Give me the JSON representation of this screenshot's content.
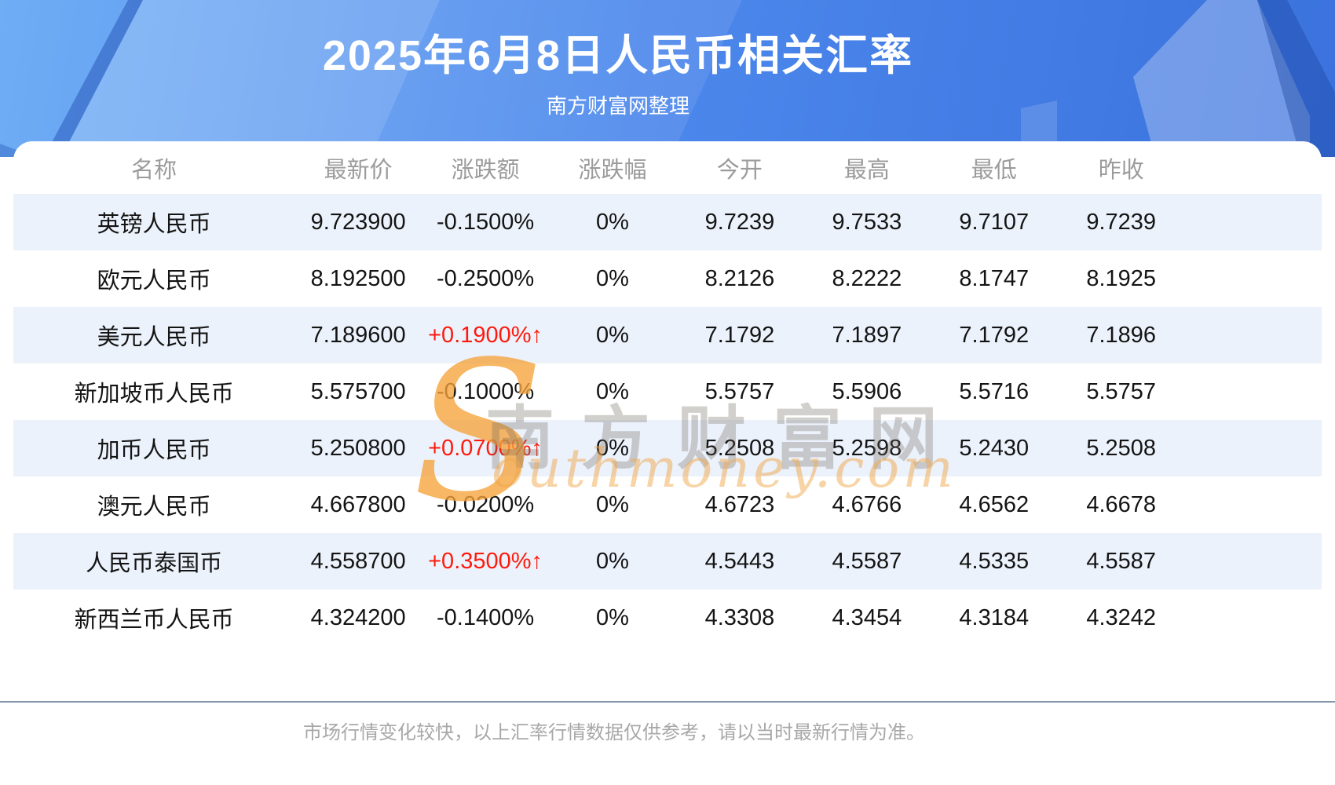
{
  "header": {
    "title": "2025年6月8日人民币相关汇率",
    "subtitle": "南方财富网整理"
  },
  "table": {
    "columns": [
      "名称",
      "最新价",
      "涨跌额",
      "涨跌幅",
      "今开",
      "最高",
      "最低",
      "昨收"
    ],
    "rows": [
      {
        "name": "英镑人民币",
        "latest": "9.723900",
        "change": "-0.1500%",
        "dir": "down",
        "pct": "0%",
        "open": "9.7239",
        "high": "9.7533",
        "low": "9.7107",
        "prev": "9.7239"
      },
      {
        "name": "欧元人民币",
        "latest": "8.192500",
        "change": "-0.2500%",
        "dir": "down",
        "pct": "0%",
        "open": "8.2126",
        "high": "8.2222",
        "low": "8.1747",
        "prev": "8.1925"
      },
      {
        "name": "美元人民币",
        "latest": "7.189600",
        "change": "+0.1900%↑",
        "dir": "up",
        "pct": "0%",
        "open": "7.1792",
        "high": "7.1897",
        "low": "7.1792",
        "prev": "7.1896"
      },
      {
        "name": "新加坡币人民币",
        "latest": "5.575700",
        "change": "-0.1000%",
        "dir": "down",
        "pct": "0%",
        "open": "5.5757",
        "high": "5.5906",
        "low": "5.5716",
        "prev": "5.5757"
      },
      {
        "name": "加币人民币",
        "latest": "5.250800",
        "change": "+0.0700%↑",
        "dir": "up",
        "pct": "0%",
        "open": "5.2508",
        "high": "5.2598",
        "low": "5.2430",
        "prev": "5.2508"
      },
      {
        "name": "澳元人民币",
        "latest": "4.667800",
        "change": "-0.0200%",
        "dir": "down",
        "pct": "0%",
        "open": "4.6723",
        "high": "4.6766",
        "low": "4.6562",
        "prev": "4.6678"
      },
      {
        "name": "人民币泰国币",
        "latest": "4.558700",
        "change": "+0.3500%↑",
        "dir": "up",
        "pct": "0%",
        "open": "4.5443",
        "high": "4.5587",
        "low": "4.5335",
        "prev": "4.5587"
      },
      {
        "name": "新西兰币人民币",
        "latest": "4.324200",
        "change": "-0.1400%",
        "dir": "down",
        "pct": "0%",
        "open": "4.3308",
        "high": "4.3454",
        "low": "4.3184",
        "prev": "4.3242"
      }
    ]
  },
  "watermark": {
    "s": "S",
    "cn": "南方财富网",
    "en": "outhmoney.com"
  },
  "footer": {
    "note": "市场行情变化较快，以上汇率行情数据仅供参考，请以当时最新行情为准。"
  },
  "colors": {
    "banner_blue": "#4c88ec",
    "row_stripe": "#ecf2fb",
    "up_red": "#fd1b0e",
    "header_gray": "#9b9b9b",
    "divider": "#8496ab",
    "watermark_orange": "#f6a33b"
  },
  "chart_data": {
    "type": "table",
    "title": "2025年6月8日人民币相关汇率",
    "subtitle": "南方财富网整理",
    "columns": [
      "名称",
      "最新价",
      "涨跌额",
      "涨跌幅",
      "今开",
      "最高",
      "最低",
      "昨收"
    ],
    "rows": [
      [
        "英镑人民币",
        "9.723900",
        "-0.1500%",
        "0%",
        "9.7239",
        "9.7533",
        "9.7107",
        "9.7239"
      ],
      [
        "欧元人民币",
        "8.192500",
        "-0.2500%",
        "0%",
        "8.2126",
        "8.2222",
        "8.1747",
        "8.1925"
      ],
      [
        "美元人民币",
        "7.189600",
        "+0.1900%↑",
        "0%",
        "7.1792",
        "7.1897",
        "7.1792",
        "7.1896"
      ],
      [
        "新加坡币人民币",
        "5.575700",
        "-0.1000%",
        "0%",
        "5.5757",
        "5.5906",
        "5.5716",
        "5.5757"
      ],
      [
        "加币人民币",
        "5.250800",
        "+0.0700%↑",
        "0%",
        "5.2508",
        "5.2598",
        "5.2430",
        "5.2508"
      ],
      [
        "澳元人民币",
        "4.667800",
        "-0.0200%",
        "0%",
        "4.6723",
        "4.6766",
        "4.6562",
        "4.6678"
      ],
      [
        "人民币泰国币",
        "4.558700",
        "+0.3500%↑",
        "0%",
        "4.5443",
        "4.5587",
        "4.5335",
        "4.5587"
      ],
      [
        "新西兰币人民币",
        "4.324200",
        "-0.1400%",
        "0%",
        "4.3308",
        "4.3454",
        "4.3184",
        "4.3242"
      ]
    ]
  }
}
